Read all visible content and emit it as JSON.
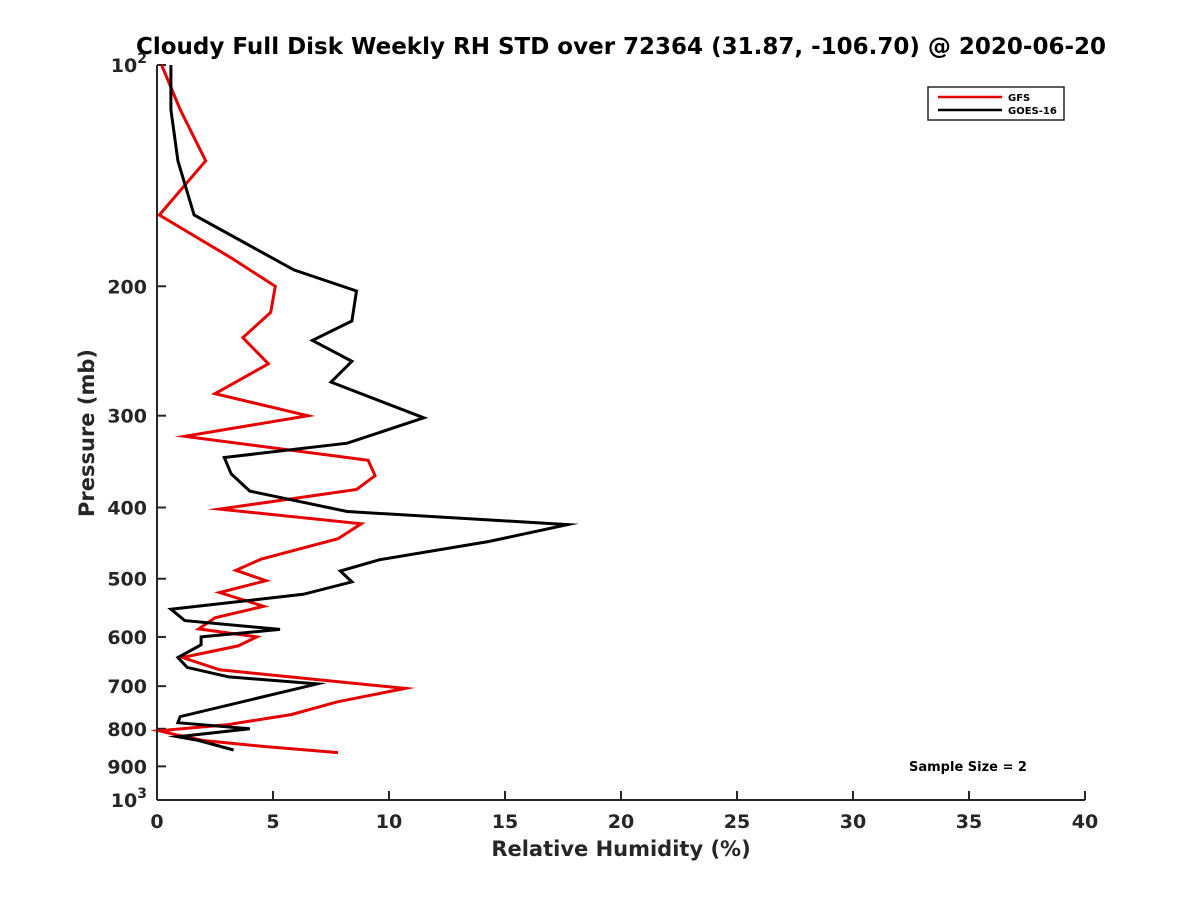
{
  "chart_data": {
    "type": "line",
    "title": "Cloudy Full Disk Weekly RH STD over 72364 (31.87, -106.70) @ 2020-06-20",
    "xlabel": "Relative Humidity (%)",
    "ylabel": "Pressure (mb)",
    "xlim": [
      0,
      40
    ],
    "ylim": [
      100,
      1000
    ],
    "y_scale": "log",
    "y_reversed": true,
    "grid": false,
    "legend_position": "top-right",
    "x_ticks": [
      {
        "value": 0,
        "label": "0"
      },
      {
        "value": 5,
        "label": "5"
      },
      {
        "value": 10,
        "label": "10"
      },
      {
        "value": 15,
        "label": "15"
      },
      {
        "value": 20,
        "label": "20"
      },
      {
        "value": 25,
        "label": "25"
      },
      {
        "value": 30,
        "label": "30"
      },
      {
        "value": 35,
        "label": "35"
      },
      {
        "value": 40,
        "label": "40"
      }
    ],
    "y_ticks": [
      {
        "value": 100,
        "base": "10",
        "exp": "2"
      },
      {
        "value": 200,
        "label": "200"
      },
      {
        "value": 300,
        "label": "300"
      },
      {
        "value": 400,
        "label": "400"
      },
      {
        "value": 500,
        "label": "500"
      },
      {
        "value": 600,
        "label": "600"
      },
      {
        "value": 700,
        "label": "700"
      },
      {
        "value": 800,
        "label": "800"
      },
      {
        "value": 900,
        "label": "900"
      },
      {
        "value": 1000,
        "base": "10",
        "exp": "3"
      }
    ],
    "series": [
      {
        "name": "GFS",
        "color": "#e60000",
        "points": [
          [
            0.2,
            100
          ],
          [
            1.0,
            115
          ],
          [
            2.1,
            135
          ],
          [
            0.1,
            160
          ],
          [
            3.2,
            183
          ],
          [
            5.1,
            200
          ],
          [
            4.9,
            217
          ],
          [
            3.7,
            235
          ],
          [
            4.8,
            255
          ],
          [
            2.5,
            280
          ],
          [
            6.5,
            300
          ],
          [
            1.2,
            320
          ],
          [
            9.1,
            345
          ],
          [
            9.4,
            362
          ],
          [
            8.6,
            378
          ],
          [
            2.7,
            402
          ],
          [
            8.8,
            421
          ],
          [
            7.8,
            441
          ],
          [
            4.5,
            470
          ],
          [
            3.4,
            487
          ],
          [
            4.7,
            503
          ],
          [
            2.7,
            522
          ],
          [
            4.6,
            545
          ],
          [
            2.5,
            565
          ],
          [
            1.8,
            585
          ],
          [
            4.3,
            600
          ],
          [
            3.5,
            617
          ],
          [
            1.1,
            640
          ],
          [
            2.7,
            665
          ],
          [
            10.7,
            705
          ],
          [
            7.8,
            735
          ],
          [
            5.8,
            765
          ],
          [
            3.0,
            790
          ],
          [
            0.1,
            805
          ],
          [
            0.8,
            815
          ],
          [
            2.0,
            830
          ],
          [
            4.5,
            845
          ],
          [
            7.8,
            862
          ]
        ]
      },
      {
        "name": "GOES-16",
        "color": "#000000",
        "points": [
          [
            0.6,
            100
          ],
          [
            0.6,
            115
          ],
          [
            0.9,
            135
          ],
          [
            1.6,
            160
          ],
          [
            5.9,
            190
          ],
          [
            8.6,
            203
          ],
          [
            8.4,
            223
          ],
          [
            6.7,
            237
          ],
          [
            8.4,
            253
          ],
          [
            7.5,
            270
          ],
          [
            11.5,
            302
          ],
          [
            8.2,
            327
          ],
          [
            2.9,
            342
          ],
          [
            3.2,
            360
          ],
          [
            4.0,
            380
          ],
          [
            8.2,
            405
          ],
          [
            17.7,
            422
          ],
          [
            14.3,
            445
          ],
          [
            9.6,
            471
          ],
          [
            7.9,
            488
          ],
          [
            8.4,
            505
          ],
          [
            6.3,
            525
          ],
          [
            0.6,
            550
          ],
          [
            1.2,
            570
          ],
          [
            5.3,
            586
          ],
          [
            1.9,
            600
          ],
          [
            1.9,
            615
          ],
          [
            0.9,
            640
          ],
          [
            1.3,
            660
          ],
          [
            3.1,
            680
          ],
          [
            6.9,
            695
          ],
          [
            1.0,
            770
          ],
          [
            0.9,
            785
          ],
          [
            4.0,
            800
          ],
          [
            0.9,
            820
          ],
          [
            1.8,
            830
          ],
          [
            3.3,
            855
          ]
        ]
      }
    ],
    "annotation": "Sample Size = 2"
  }
}
